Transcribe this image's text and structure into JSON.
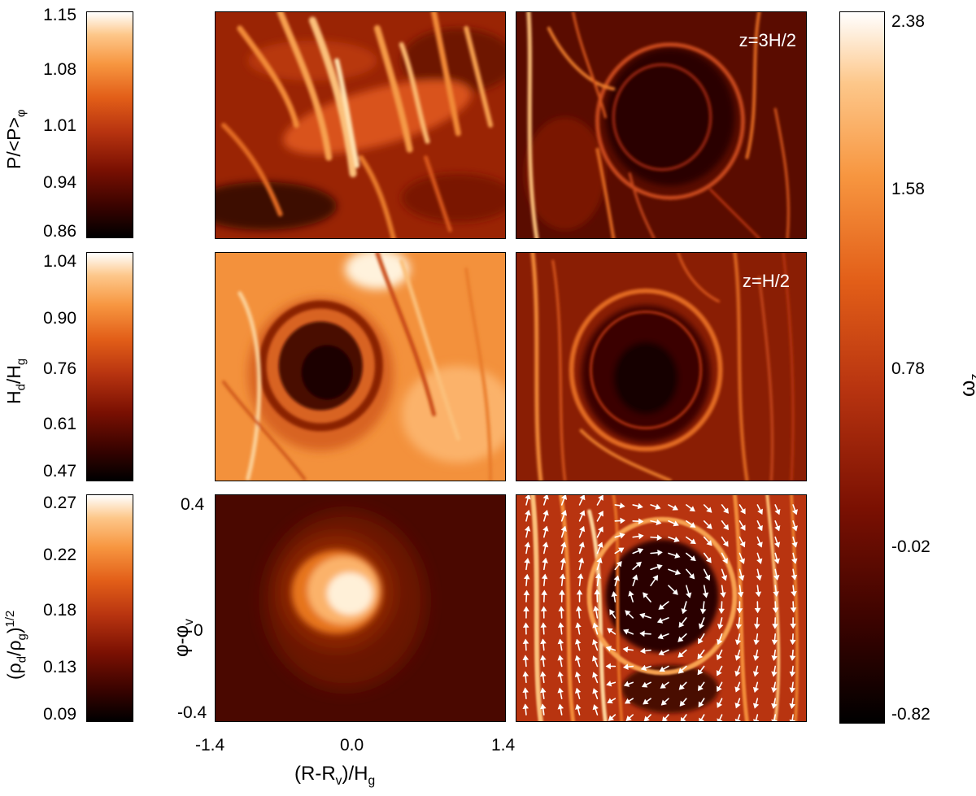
{
  "colorbars": {
    "pressure": {
      "ticks": [
        "1.15",
        "1.08",
        "1.01",
        "0.94",
        "0.86"
      ]
    },
    "hd": {
      "ticks": [
        "1.04",
        "0.90",
        "0.76",
        "0.61",
        "0.47"
      ]
    },
    "rho": {
      "ticks": [
        "0.27",
        "0.22",
        "0.18",
        "0.13",
        "0.09"
      ]
    },
    "vorticity": {
      "ticks": [
        "2.38",
        "1.58",
        "0.78",
        "-0.02",
        "-0.82"
      ]
    }
  },
  "labels": {
    "pressure_a": "P/<P>",
    "pressure_sub": "φ",
    "hd_a": "H",
    "hd_sub1": "d",
    "hd_b": "/H",
    "hd_sub2": "g",
    "rho_a": "(ρ",
    "rho_sub1": "d",
    "rho_b": "/ρ",
    "rho_sub2": "g",
    "rho_c": ")",
    "rho_sup": "1/2",
    "omega": "ω",
    "omega_sub": "z",
    "phi_a": "φ-φ",
    "phi_sub": "v",
    "x_a": "(R-R",
    "x_sub": "v",
    "x_b": ")/H",
    "x_sub2": "g"
  },
  "panels": {
    "top_right_label": "z=3H/2",
    "mid_right_label": "z=H/2"
  },
  "axes": {
    "x_ticks": [
      "-1.4",
      "0.0",
      "1.4"
    ],
    "y_ticks": [
      "0.4",
      "0",
      "-0.4"
    ]
  }
}
